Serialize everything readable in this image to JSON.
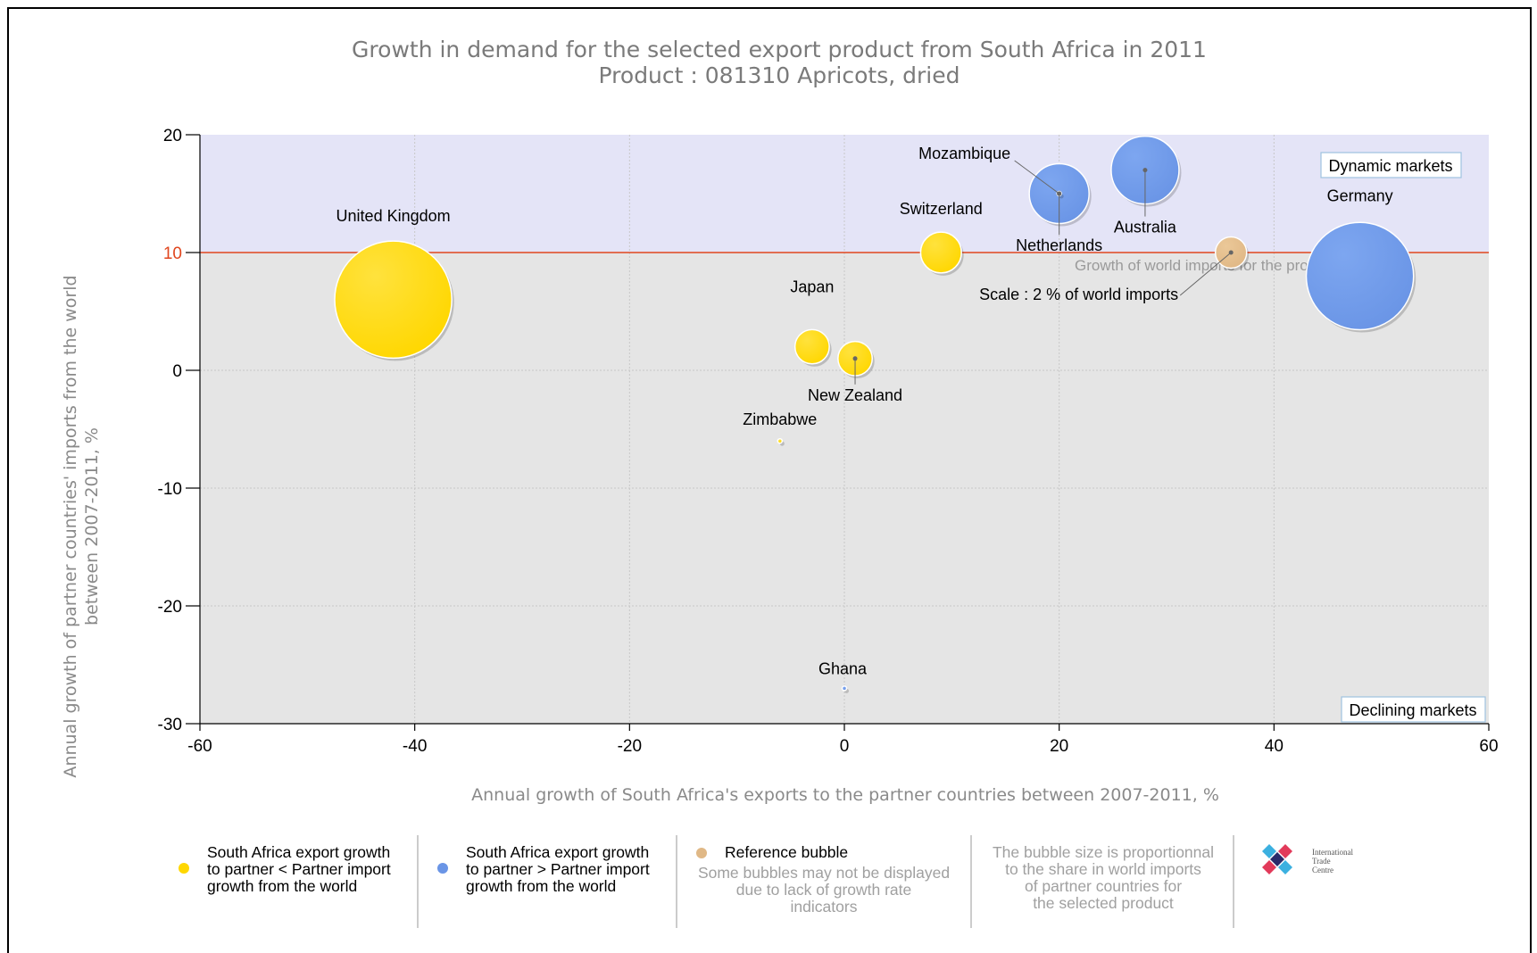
{
  "chart_data": {
    "type": "bubble",
    "title_line1": "Growth in demand for the selected export product from South Africa in 2011",
    "title_line2": "Product : 081310 Apricots, dried",
    "xlabel": "Annual growth of South Africa's exports to the partner countries between 2007-2011, %",
    "ylabel_line1": "Annual growth of partner countries' imports from the world",
    "ylabel_line2": "between 2007-2011, %",
    "xlim": [
      -60,
      60
    ],
    "ylim": [
      -30,
      20
    ],
    "x_ticks": [
      "-60",
      "-40",
      "-20",
      "0",
      "20",
      "40",
      "60"
    ],
    "y_ticks": [
      "20",
      "10",
      "0",
      "-10",
      "-20",
      "-30"
    ],
    "grid": true,
    "reference_line_y": 10,
    "reference_line_color": "#e0461e",
    "reference_line_label": "Growth of world imports for the product : 10 %",
    "upper_region_color": "#e4e4f7",
    "lower_region_color": "#e5e5e5",
    "quadrant_labels": {
      "upper": "Dynamic markets",
      "lower": "Declining markets"
    },
    "colors": {
      "yellow": "#ffd700",
      "blue": "#6a95e6",
      "reference": "#e0b886"
    },
    "bubbles": [
      {
        "name": "United Kingdom",
        "x": -42,
        "y": 6,
        "size": 28,
        "group": "yellow"
      },
      {
        "name": "Japan",
        "x": -3,
        "y": 2,
        "size": 2.4,
        "group": "yellow"
      },
      {
        "name": "New Zealand",
        "x": 1,
        "y": 1,
        "size": 2.4,
        "group": "yellow"
      },
      {
        "name": "Zimbabwe",
        "x": -6,
        "y": -6,
        "size": 0.01,
        "group": "yellow"
      },
      {
        "name": "Switzerland",
        "x": 9,
        "y": 10,
        "size": 3.4,
        "group": "yellow"
      },
      {
        "name": "Ghana",
        "x": 0,
        "y": -27,
        "size": 0.01,
        "group": "blue"
      },
      {
        "name": "Mozambique",
        "x": 20,
        "y": 15,
        "size": 0.01,
        "group": "blue"
      },
      {
        "name": "Netherlands",
        "x": 20,
        "y": 15,
        "size": 7.3,
        "group": "blue"
      },
      {
        "name": "Australia",
        "x": 28,
        "y": 17,
        "size": 9.4,
        "group": "blue"
      },
      {
        "name": "Germany",
        "x": 48,
        "y": 8,
        "size": 23.5,
        "group": "blue"
      }
    ],
    "reference_bubble": {
      "x": 36,
      "y": 10,
      "size": 2,
      "label": "Scale : 2 % of world imports"
    }
  },
  "legend": {
    "items": [
      {
        "lines": [
          "South Africa export growth",
          "to partner < Partner import",
          "growth from the world"
        ],
        "color": "#ffd700"
      },
      {
        "lines": [
          "South Africa export growth",
          "to partner > Partner import",
          "growth from the world"
        ],
        "color": "#6a95e6"
      },
      {
        "title": "Reference bubble",
        "lines": [
          "Some bubbles may not be displayed",
          "due to lack of growth rate",
          "indicators"
        ],
        "color": "#e0b886"
      }
    ],
    "note_lines": [
      "The bubble size is proportionnal",
      "to the share in world imports",
      "of partner countries for",
      "the selected product"
    ],
    "logo_lines": [
      "International",
      "Trade",
      "Centre"
    ]
  }
}
